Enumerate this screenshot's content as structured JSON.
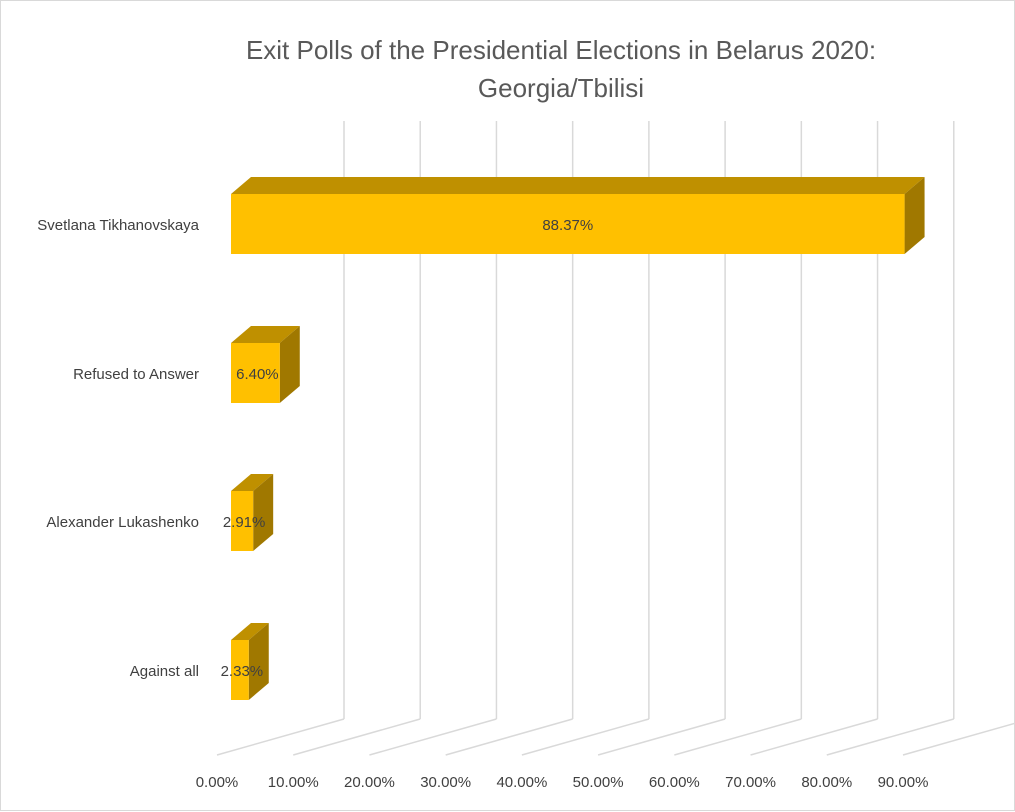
{
  "chart_data": {
    "type": "bar",
    "orientation": "horizontal",
    "style": "3d",
    "title_lines": [
      "Exit Polls of the Presidential Elections in Belarus 2020:",
      "Georgia/Tbilisi"
    ],
    "categories": [
      "Svetlana Tikhanovskaya",
      "Refused to Answer",
      "Alexander Lukashenko",
      "Against all"
    ],
    "values": [
      88.37,
      6.4,
      2.91,
      2.33
    ],
    "data_labels": [
      "88.37%",
      "6.40%",
      "2.91%",
      "2.33%"
    ],
    "xlim": [
      0,
      90
    ],
    "x_ticks": [
      0,
      10,
      20,
      30,
      40,
      50,
      60,
      70,
      80,
      90
    ],
    "x_tick_labels": [
      "0.00%",
      "10.00%",
      "20.00%",
      "30.00%",
      "40.00%",
      "50.00%",
      "60.00%",
      "70.00%",
      "80.00%",
      "90.00%"
    ],
    "grid": true,
    "legend": "none",
    "colors": {
      "bar_front": "#FFC000",
      "bar_top": "#BF9000",
      "bar_side": "#A07800",
      "grid": "#d9d9d9"
    }
  }
}
